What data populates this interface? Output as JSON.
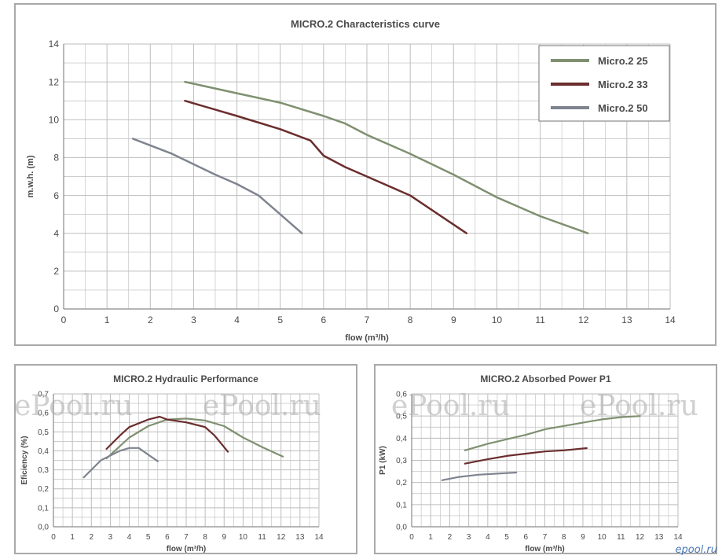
{
  "watermark": "ePool.ru",
  "site_logo": "epool.ru",
  "colors": {
    "micro25": "#7f9070",
    "micro33": "#6b2d2d",
    "micro50": "#7f8490",
    "grid": "#bdbdbd",
    "text": "#4a4a4a"
  },
  "chart_data": [
    {
      "type": "line",
      "title": "MICRO.2 Characteristics curve",
      "xlabel": "flow (m³/h)",
      "ylabel": "m.w.h. (m)",
      "xlim": [
        0,
        14
      ],
      "ylim": [
        0,
        14
      ],
      "xticks": [
        "0",
        "1",
        "2",
        "3",
        "4",
        "5",
        "6",
        "7",
        "8",
        "9",
        "10",
        "11",
        "12",
        "13",
        "14"
      ],
      "yticks": [
        "0",
        "2",
        "4",
        "6",
        "8",
        "10",
        "12",
        "14"
      ],
      "grid": true,
      "legend_position": "top-right",
      "series": [
        {
          "name": "Micro.2 25",
          "color_key": "micro25",
          "x": [
            2.8,
            4.0,
            5.0,
            6.0,
            6.5,
            7.0,
            8.0,
            9.0,
            10.0,
            11.0,
            12.1
          ],
          "y": [
            12.0,
            11.4,
            10.9,
            10.2,
            9.8,
            9.2,
            8.2,
            7.1,
            5.9,
            4.9,
            4.0
          ]
        },
        {
          "name": "Micro.2 33",
          "color_key": "micro33",
          "x": [
            2.8,
            4.0,
            5.0,
            5.7,
            6.0,
            6.5,
            7.0,
            8.0,
            9.3
          ],
          "y": [
            11.0,
            10.2,
            9.5,
            8.9,
            8.1,
            7.5,
            7.0,
            6.0,
            4.0
          ]
        },
        {
          "name": "Micro.2 50",
          "color_key": "micro50",
          "x": [
            1.6,
            2.5,
            3.5,
            4.0,
            4.5,
            5.0,
            5.5
          ],
          "y": [
            9.0,
            8.2,
            7.1,
            6.6,
            6.0,
            5.0,
            4.0
          ]
        }
      ]
    },
    {
      "type": "line",
      "title": "MICRO.2 Hydraulic Performance",
      "xlabel": "flow (m³/h)",
      "ylabel": "Eficiency (%)",
      "xlim": [
        0,
        14
      ],
      "ylim": [
        0,
        0.7
      ],
      "xticks": [
        "0",
        "1",
        "2",
        "3",
        "4",
        "5",
        "6",
        "7",
        "8",
        "9",
        "10",
        "11",
        "12",
        "13",
        "14"
      ],
      "yticks": [
        "0,0",
        "0,1",
        "0,2",
        "0,3",
        "0,4",
        "0,5",
        "0,6",
        "0,7"
      ],
      "grid": true,
      "series": [
        {
          "color_key": "micro25",
          "x": [
            2.8,
            4.0,
            5.0,
            6.0,
            7.0,
            8.0,
            9.0,
            10.0,
            11.0,
            12.1
          ],
          "y": [
            0.36,
            0.47,
            0.53,
            0.565,
            0.57,
            0.56,
            0.53,
            0.47,
            0.42,
            0.37
          ]
        },
        {
          "color_key": "micro33",
          "x": [
            2.8,
            3.5,
            4.0,
            5.0,
            5.6,
            6.0,
            7.0,
            8.0,
            8.5,
            9.2
          ],
          "y": [
            0.41,
            0.48,
            0.525,
            0.565,
            0.58,
            0.565,
            0.55,
            0.525,
            0.48,
            0.395
          ]
        },
        {
          "color_key": "micro50",
          "x": [
            1.6,
            2.5,
            3.5,
            4.0,
            4.5,
            5.0,
            5.5
          ],
          "y": [
            0.26,
            0.35,
            0.4,
            0.415,
            0.415,
            0.38,
            0.345
          ]
        }
      ]
    },
    {
      "type": "line",
      "title": "MICRO.2 Absorbed Power P1",
      "xlabel": "flow (m³/h)",
      "ylabel": "P1 (kW)",
      "xlim": [
        0,
        14
      ],
      "ylim": [
        0,
        0.6
      ],
      "xticks": [
        "0",
        "1",
        "2",
        "3",
        "4",
        "5",
        "6",
        "7",
        "8",
        "9",
        "10",
        "11",
        "12",
        "13",
        "14"
      ],
      "yticks": [
        "0,0",
        "0,1",
        "0,2",
        "0,3",
        "0,4",
        "0,5",
        "0,6"
      ],
      "grid": true,
      "series": [
        {
          "color_key": "micro25",
          "x": [
            2.8,
            4.0,
            5.0,
            6.0,
            7.0,
            8.0,
            9.0,
            10.0,
            11.0,
            12.0
          ],
          "y": [
            0.345,
            0.375,
            0.395,
            0.415,
            0.44,
            0.455,
            0.47,
            0.485,
            0.495,
            0.5
          ]
        },
        {
          "color_key": "micro33",
          "x": [
            2.8,
            4.0,
            5.0,
            6.0,
            7.0,
            8.0,
            9.2
          ],
          "y": [
            0.285,
            0.305,
            0.32,
            0.33,
            0.34,
            0.345,
            0.355
          ]
        },
        {
          "color_key": "micro50",
          "x": [
            1.6,
            2.5,
            3.5,
            4.5,
            5.5
          ],
          "y": [
            0.21,
            0.225,
            0.235,
            0.24,
            0.245
          ]
        }
      ]
    }
  ]
}
